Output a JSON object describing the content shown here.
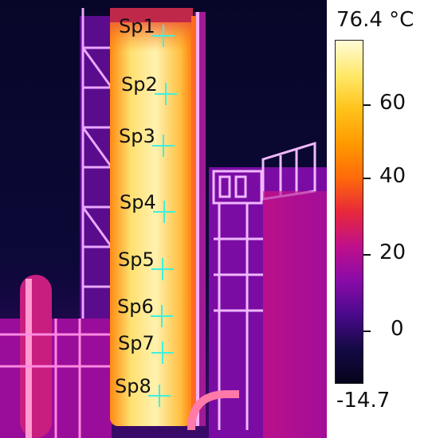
{
  "colorbar": {
    "max_label": "76.4 °C",
    "min_label": "-14.7",
    "ticks": [
      "60",
      "40",
      "20",
      "0"
    ],
    "palette": [
      "#fffbd6",
      "#ffe96a",
      "#ffc21a",
      "#ff9a00",
      "#ff6a0a",
      "#e8283a",
      "#c0108a",
      "#8a0ba8",
      "#4a0a8c",
      "#140a44",
      "#06041c"
    ]
  },
  "spots": [
    "Sp1",
    "Sp2",
    "Sp3",
    "Sp4",
    "Sp5",
    "Sp6",
    "Sp7",
    "Sp8"
  ],
  "marker_color": "#3ff0e0"
}
